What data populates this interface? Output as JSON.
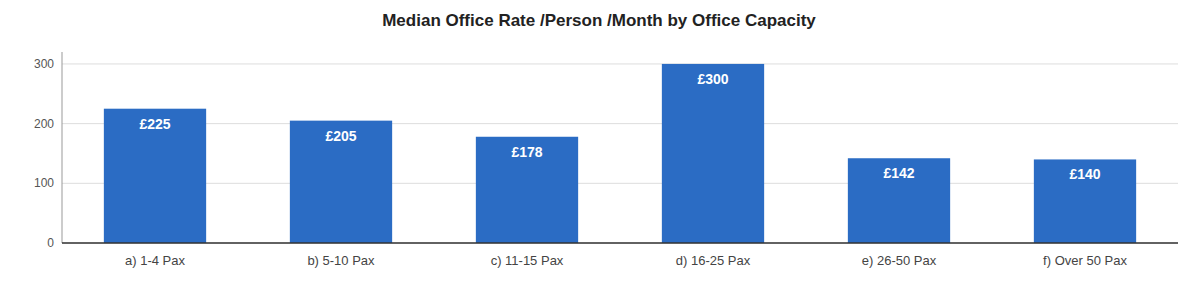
{
  "chart_data": {
    "type": "bar",
    "title": "Median Office Rate /Person /Month by Office Capacity",
    "categories": [
      "a) 1-4 Pax",
      "b) 5-10 Pax",
      "c) 11-15 Pax",
      "d) 16-25 Pax",
      "e) 26-50 Pax",
      "f) Over 50 Pax"
    ],
    "values": [
      225,
      205,
      178,
      300,
      142,
      140
    ],
    "value_labels": [
      "£225",
      "£205",
      "£178",
      "£300",
      "£142",
      "£140"
    ],
    "data_labels": true,
    "color": "#2B6CC4",
    "ylim": [
      0,
      320
    ],
    "yticks": [
      0,
      100,
      200,
      300
    ],
    "grid": true
  }
}
